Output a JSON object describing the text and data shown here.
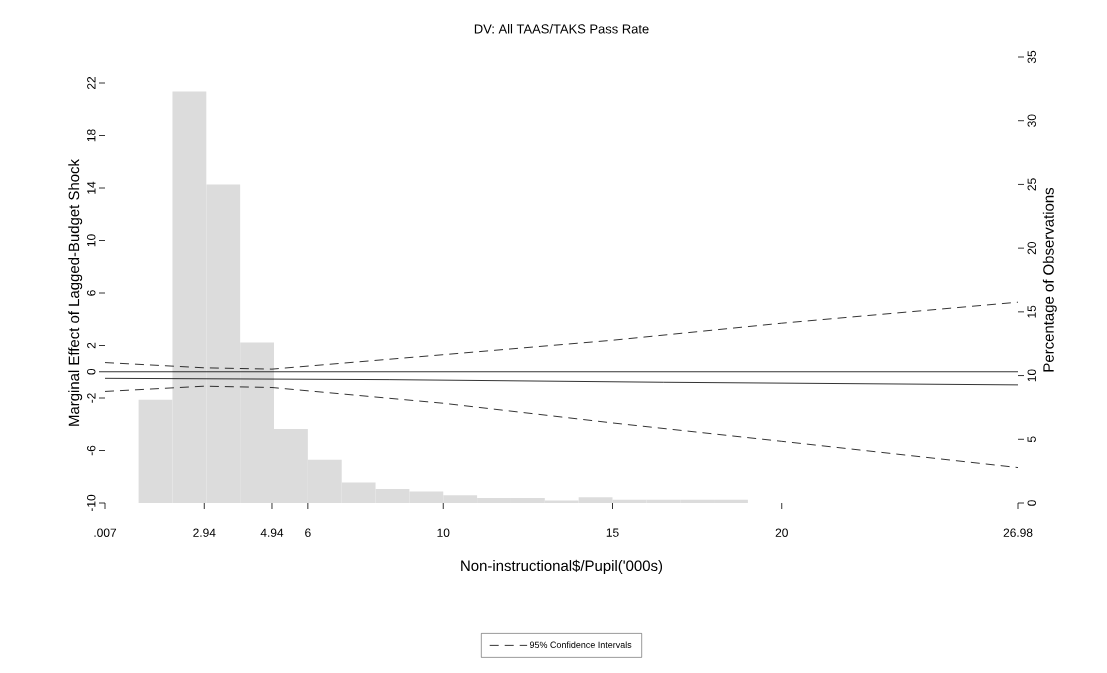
{
  "chart_data": {
    "type": "line",
    "title": "DV: All TAAS/TAKS Pass Rate",
    "xlabel": "Non-instructional$/Pupil('000s)",
    "ylabel": "Marginal Effect of Lagged-Budget Shock",
    "y2label": "Percentage of Observations",
    "xlim": [
      0.007,
      26.98
    ],
    "xticks": [
      {
        "value": 0.007,
        "label": ".007"
      },
      2.94,
      4.94,
      6,
      10,
      15,
      20,
      26.98
    ],
    "ylim": [
      -10,
      22
    ],
    "yticks": [
      -10,
      -6,
      -2,
      0,
      2,
      6,
      10,
      14,
      18,
      22
    ],
    "y2lim": [
      0,
      35
    ],
    "y2ticks": [
      0,
      5,
      10,
      15,
      20,
      25,
      30,
      35
    ],
    "legend": "bottom",
    "ref_lines": [
      {
        "axis": "y",
        "value": 0,
        "color": "#000000",
        "line_style": "solid"
      }
    ],
    "series": [
      {
        "color": "#000000",
        "line_style": "solid",
        "x": [
          0.007,
          8.4,
          16.5,
          26.98
        ],
        "values": [
          -0.5,
          -0.6,
          -0.8,
          -1.0
        ]
      },
      {
        "name": "95% Confidence Intervals",
        "color": "#000000",
        "line_style": "dashed",
        "x": [
          0.007,
          2.94,
          4.94,
          10,
          15,
          20,
          26.98
        ],
        "values": [
          0.7,
          0.3,
          0.2,
          1.3,
          2.4,
          3.7,
          5.3
        ]
      },
      {
        "color": "#000000",
        "line_style": "dashed",
        "x": [
          0.007,
          2.94,
          4.94,
          10,
          15,
          20,
          26.98
        ],
        "values": [
          -1.5,
          -1.1,
          -1.2,
          -2.4,
          -3.9,
          -5.3,
          -7.3
        ]
      },
      {
        "type": "histogram",
        "axis": "y2",
        "color": "#dcdcdc",
        "bins": [
          1,
          2,
          3,
          4,
          5,
          6,
          7,
          8,
          9,
          10,
          11,
          12,
          13,
          14,
          15,
          16,
          17,
          18,
          19
        ],
        "values": [
          8.1,
          32.3,
          25.0,
          12.6,
          5.8,
          3.4,
          1.6,
          1.1,
          0.9,
          0.6,
          0.4,
          0.4,
          0.2,
          0.45,
          0.25,
          0.25,
          0.25,
          0.25
        ]
      }
    ]
  }
}
